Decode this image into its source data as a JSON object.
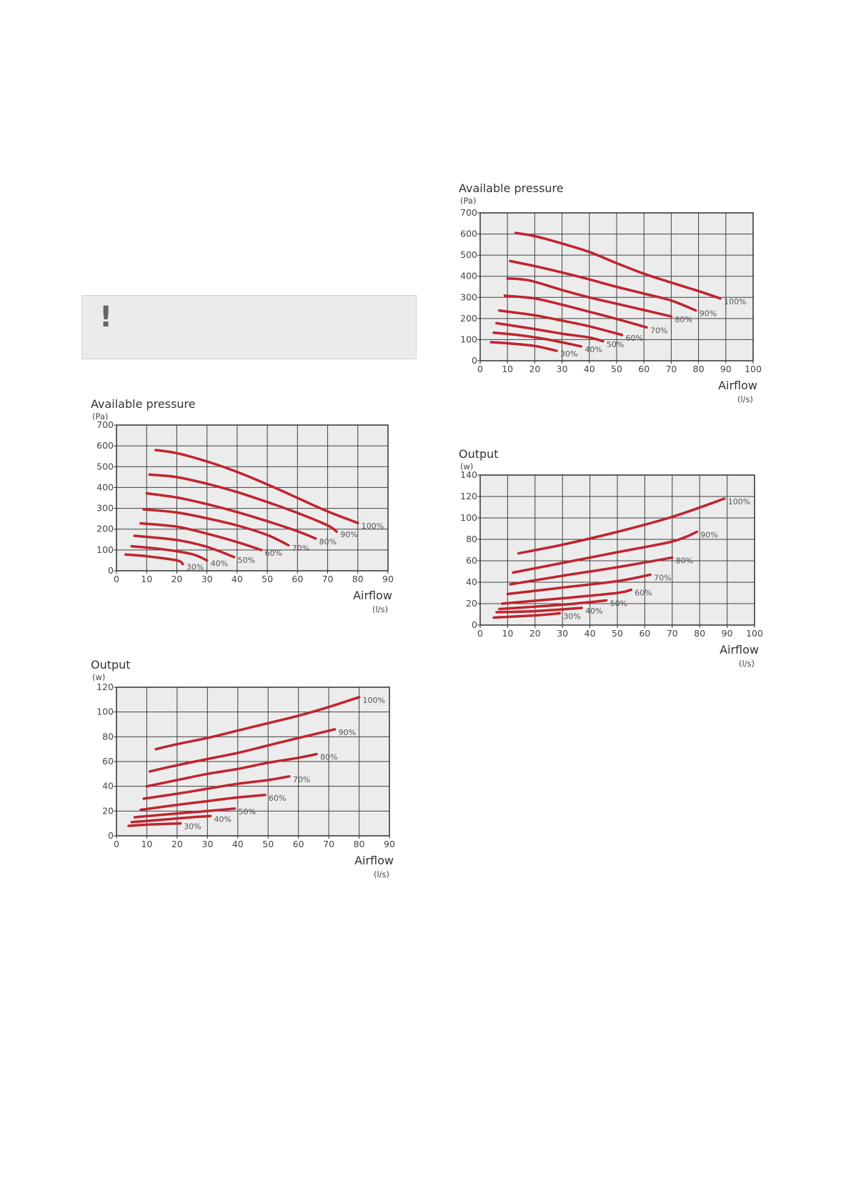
{
  "note": {
    "icon": "exclamation-icon",
    "symbol": "!"
  },
  "colors": {
    "curve": "#c0242e",
    "plot_bg": "#ececec",
    "note_bg": "#ebebeb"
  },
  "chart_data": [
    {
      "id": "pressure-left",
      "type": "line",
      "title": "Available pressure",
      "y_unit": "(Pa)",
      "xlabel": "Airflow",
      "x_unit": "(l/s)",
      "xlim": [
        0,
        90
      ],
      "ylim": [
        0,
        700
      ],
      "x_ticks": [
        0,
        10,
        20,
        30,
        40,
        50,
        60,
        70,
        80,
        90
      ],
      "y_ticks": [
        0,
        100,
        200,
        300,
        400,
        500,
        600,
        700
      ],
      "grid": true,
      "series": [
        {
          "name": "100%",
          "points": [
            [
              13,
              580
            ],
            [
              20,
              565
            ],
            [
              30,
              525
            ],
            [
              40,
              475
            ],
            [
              50,
              415
            ],
            [
              60,
              350
            ],
            [
              70,
              285
            ],
            [
              80,
              230
            ]
          ]
        },
        {
          "name": "90%",
          "points": [
            [
              11,
              462
            ],
            [
              20,
              450
            ],
            [
              30,
              418
            ],
            [
              40,
              378
            ],
            [
              50,
              330
            ],
            [
              60,
              278
            ],
            [
              70,
              218
            ],
            [
              73,
              188
            ]
          ]
        },
        {
          "name": "80%",
          "points": [
            [
              10,
              372
            ],
            [
              20,
              352
            ],
            [
              30,
              320
            ],
            [
              40,
              282
            ],
            [
              50,
              238
            ],
            [
              60,
              190
            ],
            [
              66,
              155
            ]
          ]
        },
        {
          "name": "70%",
          "points": [
            [
              9,
              295
            ],
            [
              20,
              280
            ],
            [
              30,
              252
            ],
            [
              40,
              218
            ],
            [
              50,
              172
            ],
            [
              57,
              123
            ]
          ]
        },
        {
          "name": "60%",
          "points": [
            [
              8,
              228
            ],
            [
              20,
              212
            ],
            [
              30,
              178
            ],
            [
              40,
              138
            ],
            [
              48,
              100
            ]
          ]
        },
        {
          "name": "50%",
          "points": [
            [
              6,
              168
            ],
            [
              20,
              148
            ],
            [
              30,
              115
            ],
            [
              39,
              66
            ]
          ]
        },
        {
          "name": "40%",
          "points": [
            [
              5,
              118
            ],
            [
              15,
              104
            ],
            [
              25,
              80
            ],
            [
              30,
              50
            ]
          ]
        },
        {
          "name": "30%",
          "points": [
            [
              3,
              78
            ],
            [
              10,
              70
            ],
            [
              20,
              50
            ],
            [
              22,
              32
            ]
          ]
        }
      ]
    },
    {
      "id": "output-left",
      "type": "line",
      "title": "Output",
      "y_unit": "(w)",
      "xlabel": "Airflow",
      "x_unit": "(l/s)",
      "xlim": [
        0,
        90
      ],
      "ylim": [
        0,
        120
      ],
      "x_ticks": [
        0,
        10,
        20,
        30,
        40,
        50,
        60,
        70,
        80,
        90
      ],
      "y_ticks": [
        0,
        20,
        40,
        60,
        80,
        100,
        120
      ],
      "grid": true,
      "series": [
        {
          "name": "100%",
          "points": [
            [
              13,
              70
            ],
            [
              20,
              74
            ],
            [
              30,
              79
            ],
            [
              40,
              85
            ],
            [
              50,
              91
            ],
            [
              60,
              97
            ],
            [
              70,
              104
            ],
            [
              80,
              112
            ]
          ]
        },
        {
          "name": "90%",
          "points": [
            [
              11,
              52
            ],
            [
              20,
              57
            ],
            [
              30,
              62
            ],
            [
              40,
              67
            ],
            [
              50,
              73
            ],
            [
              60,
              79
            ],
            [
              72,
              86
            ]
          ]
        },
        {
          "name": "80%",
          "points": [
            [
              10,
              40
            ],
            [
              20,
              45
            ],
            [
              30,
              50
            ],
            [
              40,
              54
            ],
            [
              50,
              59
            ],
            [
              60,
              63
            ],
            [
              66,
              66
            ]
          ]
        },
        {
          "name": "70%",
          "points": [
            [
              9,
              30
            ],
            [
              20,
              34
            ],
            [
              30,
              38
            ],
            [
              40,
              42
            ],
            [
              50,
              45
            ],
            [
              57,
              48
            ]
          ]
        },
        {
          "name": "60%",
          "points": [
            [
              8,
              21
            ],
            [
              20,
              25
            ],
            [
              30,
              28
            ],
            [
              40,
              31
            ],
            [
              49,
              33
            ]
          ]
        },
        {
          "name": "50%",
          "points": [
            [
              6,
              15
            ],
            [
              20,
              18
            ],
            [
              30,
              20
            ],
            [
              39,
              22
            ]
          ]
        },
        {
          "name": "40%",
          "points": [
            [
              5,
              11
            ],
            [
              15,
              13
            ],
            [
              25,
              15
            ],
            [
              31,
              16
            ]
          ]
        },
        {
          "name": "30%",
          "points": [
            [
              4,
              8
            ],
            [
              10,
              9
            ],
            [
              20,
              10
            ],
            [
              21,
              10
            ]
          ]
        }
      ]
    },
    {
      "id": "pressure-right",
      "type": "line",
      "title": "Available pressure",
      "y_unit": "(Pa)",
      "xlabel": "Airflow",
      "x_unit": "(l/s)",
      "xlim": [
        0,
        100
      ],
      "ylim": [
        0,
        700
      ],
      "x_ticks": [
        0,
        10,
        20,
        30,
        40,
        50,
        60,
        70,
        80,
        90,
        100
      ],
      "y_ticks": [
        0,
        100,
        200,
        300,
        400,
        500,
        600,
        700
      ],
      "grid": true,
      "series": [
        {
          "name": "100%",
          "points": [
            [
              13,
              605
            ],
            [
              20,
              590
            ],
            [
              30,
              555
            ],
            [
              40,
              515
            ],
            [
              50,
              462
            ],
            [
              60,
              412
            ],
            [
              70,
              370
            ],
            [
              80,
              330
            ],
            [
              88,
              295
            ]
          ]
        },
        {
          "name": "90%",
          "points": [
            [
              11,
              472
            ],
            [
              20,
              448
            ],
            [
              30,
              418
            ],
            [
              40,
              385
            ],
            [
              50,
              350
            ],
            [
              60,
              318
            ],
            [
              70,
              285
            ],
            [
              79,
              238
            ]
          ]
        },
        {
          "name": "80%",
          "points": [
            [
              10,
              390
            ],
            [
              18,
              380
            ],
            [
              30,
              335
            ],
            [
              40,
              300
            ],
            [
              50,
              270
            ],
            [
              60,
              240
            ],
            [
              70,
              210
            ]
          ]
        },
        {
          "name": "70%",
          "points": [
            [
              9,
              308
            ],
            [
              20,
              295
            ],
            [
              30,
              265
            ],
            [
              40,
              232
            ],
            [
              50,
              198
            ],
            [
              61,
              158
            ]
          ]
        },
        {
          "name": "60%",
          "points": [
            [
              7,
              238
            ],
            [
              20,
              215
            ],
            [
              30,
              190
            ],
            [
              40,
              163
            ],
            [
              52,
              122
            ]
          ]
        },
        {
          "name": "50%",
          "points": [
            [
              6,
              178
            ],
            [
              20,
              150
            ],
            [
              30,
              128
            ],
            [
              40,
              110
            ],
            [
              45,
              92
            ]
          ]
        },
        {
          "name": "40%",
          "points": [
            [
              5,
              133
            ],
            [
              15,
              120
            ],
            [
              25,
              100
            ],
            [
              37,
              68
            ]
          ]
        },
        {
          "name": "30%",
          "points": [
            [
              4,
              88
            ],
            [
              10,
              83
            ],
            [
              20,
              70
            ],
            [
              28,
              47
            ]
          ]
        }
      ]
    },
    {
      "id": "output-right",
      "type": "line",
      "title": "Output",
      "y_unit": "(w)",
      "xlabel": "Airflow",
      "x_unit": "(l/s)",
      "xlim": [
        0,
        100
      ],
      "ylim": [
        0,
        140
      ],
      "x_ticks": [
        0,
        10,
        20,
        30,
        40,
        50,
        60,
        70,
        80,
        90,
        100
      ],
      "y_ticks": [
        0,
        20,
        40,
        60,
        80,
        100,
        120,
        140
      ],
      "grid": true,
      "series": [
        {
          "name": "100%",
          "points": [
            [
              14,
              67
            ],
            [
              30,
              75
            ],
            [
              50,
              87
            ],
            [
              70,
              101
            ],
            [
              89,
              118
            ]
          ]
        },
        {
          "name": "90%",
          "points": [
            [
              12,
              49
            ],
            [
              30,
              58
            ],
            [
              50,
              68
            ],
            [
              70,
              78
            ],
            [
              79,
              87
            ]
          ]
        },
        {
          "name": "80%",
          "points": [
            [
              11,
              38
            ],
            [
              30,
              46
            ],
            [
              50,
              54
            ],
            [
              70,
              63
            ]
          ]
        },
        {
          "name": "70%",
          "points": [
            [
              10,
              29
            ],
            [
              30,
              35
            ],
            [
              50,
              41
            ],
            [
              62,
              47
            ]
          ]
        },
        {
          "name": "60%",
          "points": [
            [
              8,
              20
            ],
            [
              30,
              25
            ],
            [
              50,
              30
            ],
            [
              55,
              33
            ]
          ]
        },
        {
          "name": "50%",
          "points": [
            [
              7,
              15
            ],
            [
              30,
              19
            ],
            [
              46,
              23
            ]
          ]
        },
        {
          "name": "40%",
          "points": [
            [
              6,
              12
            ],
            [
              20,
              13
            ],
            [
              37,
              16
            ]
          ]
        },
        {
          "name": "30%",
          "points": [
            [
              5,
              7
            ],
            [
              20,
              9
            ],
            [
              29,
              11
            ]
          ]
        }
      ]
    }
  ]
}
